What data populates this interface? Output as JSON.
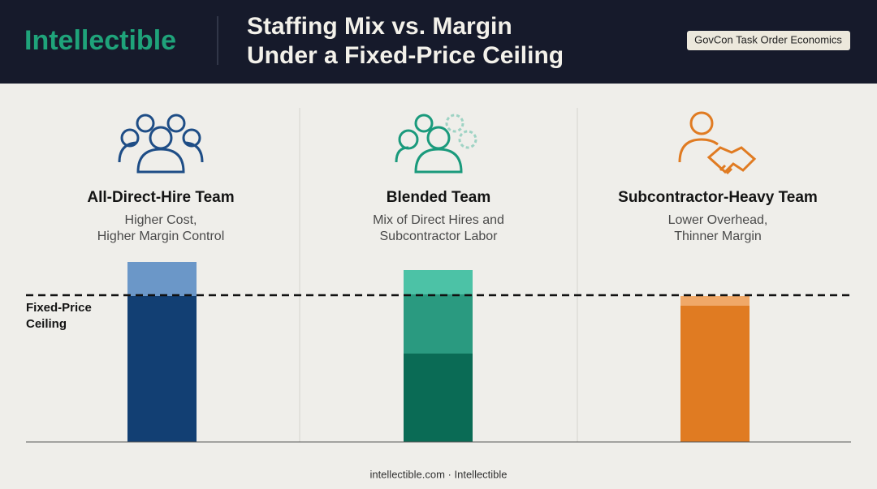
{
  "header": {
    "logo": "Intellectible",
    "title": [
      "Staffing Mix vs. Margin",
      "Under a Fixed-Price Ceiling"
    ],
    "badge": "GovCon Task Order Economics"
  },
  "columns": [
    {
      "heading": "All-Direct-Hire Team",
      "description": [
        "Higher Cost,",
        "Higher Margin Control"
      ]
    },
    {
      "heading": "Blended Team",
      "description": [
        "Mix of Direct Hires and",
        "Subcontractor Labor"
      ]
    },
    {
      "heading": "Subcontractor-Heavy Team",
      "description": [
        "Lower Overhead,",
        "Thinner Margin"
      ]
    }
  ],
  "ceiling_label": [
    "Fixed-Price",
    "Ceiling"
  ],
  "footer": "intellectible.com · Intellectible"
}
